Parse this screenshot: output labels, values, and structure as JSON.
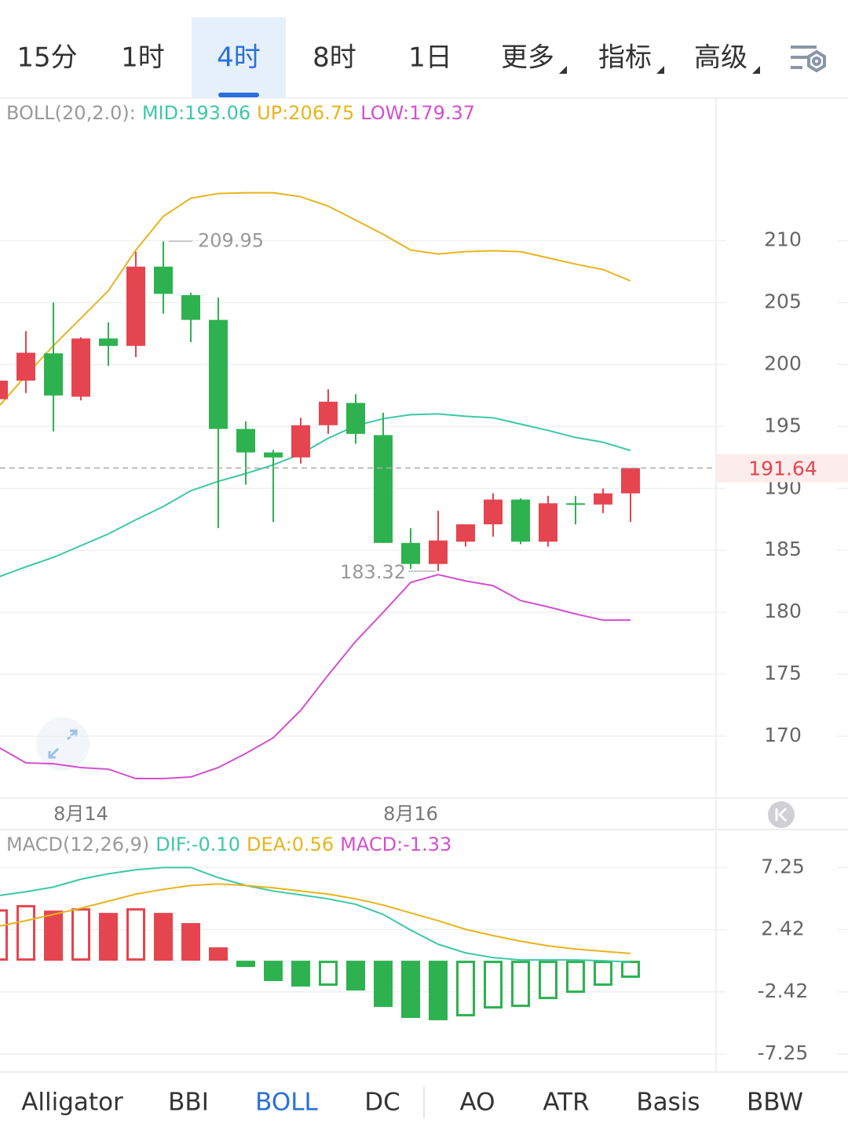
{
  "timeframes": [
    {
      "label": "15分"
    },
    {
      "label": "1时"
    },
    {
      "label": "4时",
      "active": true
    },
    {
      "label": "8时"
    },
    {
      "label": "1日"
    },
    {
      "label": "更多",
      "dropdown": true
    },
    {
      "label": "指标",
      "dropdown": true
    },
    {
      "label": "高级",
      "dropdown": true
    }
  ],
  "chart_data": [
    {
      "type": "candlestick",
      "indicator_label": "BOLL(20,2.0):",
      "categories": [
        null,
        null,
        null,
        "8月14",
        null,
        null,
        null,
        null,
        null,
        null,
        null,
        null,
        null,
        null,
        null,
        "8月16",
        null,
        null,
        null,
        null,
        null,
        null,
        null,
        null
      ],
      "open": [
        197.2,
        198.7,
        200.9,
        197.4,
        202.1,
        201.5,
        207.9,
        205.6,
        203.6,
        194.8,
        192.9,
        192.5,
        195.1,
        196.9,
        194.3,
        185.6,
        183.9,
        185.7,
        187.1,
        189.1,
        185.7,
        188.8,
        188.7,
        189.6
      ],
      "high": [
        198.9,
        202.7,
        205.0,
        202.2,
        203.4,
        209.1,
        209.95,
        205.8,
        205.4,
        195.4,
        193.1,
        195.7,
        198.0,
        197.6,
        196.1,
        186.8,
        188.2,
        187.1,
        189.6,
        189.2,
        189.4,
        189.4,
        190.0,
        191.64
      ],
      "low": [
        197.0,
        197.7,
        194.6,
        197.1,
        199.9,
        200.6,
        204.1,
        201.8,
        186.8,
        190.3,
        187.3,
        192.0,
        194.4,
        193.6,
        185.6,
        183.5,
        183.32,
        185.3,
        186.1,
        185.5,
        185.3,
        187.1,
        188.0,
        187.3
      ],
      "close": [
        198.7,
        200.95,
        197.5,
        202.1,
        201.5,
        207.9,
        205.7,
        203.6,
        194.8,
        192.9,
        192.5,
        195.1,
        197.0,
        194.4,
        185.6,
        183.9,
        185.8,
        187.1,
        189.1,
        185.7,
        188.8,
        188.7,
        189.6,
        191.64
      ],
      "up_color": "#e5454f",
      "down_color": "#2db24f",
      "lines": [
        {
          "name": "MID:193.06",
          "color": "#3cc8a8",
          "values": [
            182.85,
            183.67,
            184.43,
            185.38,
            186.33,
            187.47,
            188.54,
            189.81,
            190.57,
            191.2,
            191.9,
            192.78,
            194.05,
            195.06,
            195.63,
            195.95,
            196.01,
            195.82,
            195.7,
            195.19,
            194.68,
            194.11,
            193.73,
            193.06
          ]
        },
        {
          "name": "UP:206.75",
          "color": "#e8b41c",
          "values": [
            196.58,
            199.11,
            201.52,
            203.73,
            205.95,
            209.24,
            211.96,
            213.42,
            213.8,
            213.86,
            213.86,
            213.54,
            212.78,
            211.65,
            210.51,
            209.24,
            208.92,
            209.11,
            209.18,
            209.11,
            208.61,
            208.1,
            207.66,
            206.75
          ]
        },
        {
          "name": "LOW:179.37",
          "color": "#d44fcf",
          "values": [
            169.11,
            167.85,
            167.78,
            167.47,
            167.34,
            166.58,
            166.58,
            166.71,
            167.47,
            168.61,
            169.87,
            172.09,
            174.94,
            177.66,
            180.0,
            182.41,
            183.04,
            182.53,
            182.15,
            180.95,
            180.44,
            179.87,
            179.37,
            179.37
          ]
        }
      ],
      "ylim": [
        165.0,
        221.5
      ],
      "yticks": [
        170,
        175,
        180,
        185,
        190,
        195,
        200,
        205,
        210
      ],
      "grid": true,
      "current_price_line": true
    },
    {
      "type": "macd",
      "indicator_label": "MACD(12,26,9)",
      "histogram": {
        "name": "MACD:-1.33",
        "up_color": "#e5454f",
        "down_color": "#2db24f",
        "values": [
          4.0,
          4.33,
          3.9,
          4.08,
          3.72,
          4.08,
          3.72,
          2.93,
          1.04,
          -0.49,
          -1.58,
          -2.01,
          -1.95,
          -2.32,
          -3.6,
          -4.45,
          -4.63,
          -4.33,
          -3.72,
          -3.6,
          -2.99,
          -2.5,
          -1.95,
          -1.33
        ]
      },
      "lines": [
        {
          "name": "DIF:-0.10",
          "color": "#3cc8a8",
          "values": [
            5.06,
            5.36,
            5.73,
            6.34,
            6.76,
            7.07,
            7.25,
            7.25,
            6.46,
            5.85,
            5.42,
            5.12,
            4.81,
            4.39,
            3.6,
            2.38,
            1.28,
            0.61,
            0.24,
            0.06,
            0.06,
            0.06,
            0.0,
            -0.1
          ]
        },
        {
          "name": "DEA:0.56",
          "color": "#e8b41c",
          "values": [
            2.68,
            3.11,
            3.6,
            4.08,
            4.63,
            5.18,
            5.55,
            5.85,
            5.97,
            5.85,
            5.67,
            5.42,
            5.18,
            4.81,
            4.33,
            3.72,
            3.11,
            2.44,
            1.95,
            1.52,
            1.16,
            0.91,
            0.73,
            0.56
          ]
        }
      ],
      "ylim": [
        -8.6,
        10.2
      ],
      "yticks": [
        -7.25,
        -2.42,
        2.42,
        7.25
      ],
      "grid": true
    }
  ],
  "indicator_tabs": [
    {
      "label": "Alligator"
    },
    {
      "label": "BBI"
    },
    {
      "label": "BOLL",
      "active": true
    },
    {
      "label": "DC"
    },
    {
      "label": "AO"
    },
    {
      "label": "ATR"
    },
    {
      "label": "Basis"
    },
    {
      "label": "BBW"
    }
  ]
}
